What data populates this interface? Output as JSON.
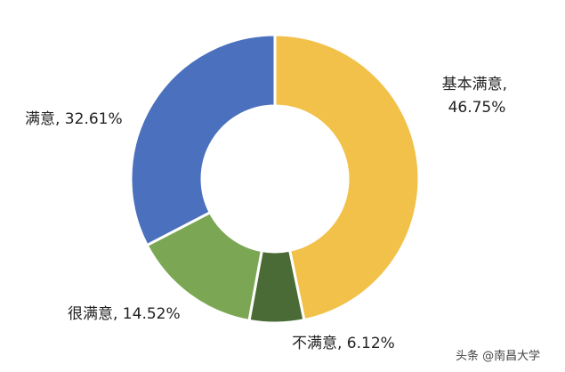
{
  "chart_data": {
    "type": "pie",
    "donut": true,
    "categories": [
      "基本满意",
      "不满意",
      "很满意",
      "满意"
    ],
    "values": [
      46.75,
      6.12,
      14.52,
      32.61
    ],
    "unit": "%",
    "colors": [
      "#F2C14A",
      "#4A6B35",
      "#7BA755",
      "#4A70BE"
    ],
    "labels": [
      {
        "line1": "基本满意,",
        "line2": "46.75%"
      },
      {
        "line1": "不满意, 6.12%",
        "line2": ""
      },
      {
        "line1": "很满意, 14.52%",
        "line2": ""
      },
      {
        "line1": "满意, 32.61%",
        "line2": ""
      }
    ],
    "title": "",
    "legend": "none"
  },
  "watermark": {
    "text": "头条 @南昌大学"
  }
}
